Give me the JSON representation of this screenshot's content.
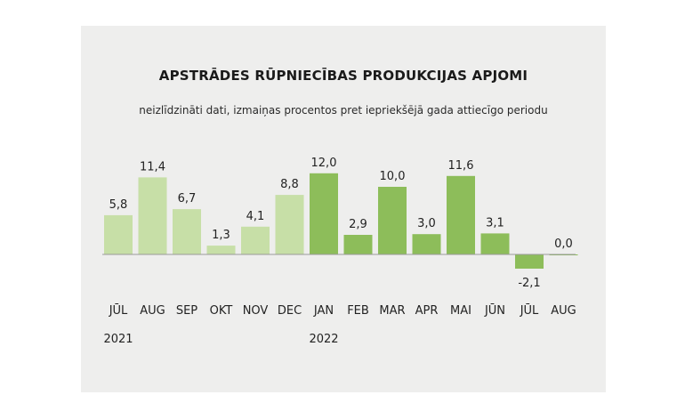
{
  "chart_data": {
    "type": "bar",
    "title": "APSTRĀDES RŪPNIECĪBAS PRODUKCIJAS APJOMI",
    "subtitle": "neizlīdzināti dati, izmaiņas procentos pret iepriekšējā gada attiecīgo periodu",
    "categories": [
      "JŪL",
      "AUG",
      "SEP",
      "OKT",
      "NOV",
      "DEC",
      "JAN",
      "FEB",
      "MAR",
      "APR",
      "MAI",
      "JŪN",
      "JŪL",
      "AUG"
    ],
    "category_years": [
      "2021",
      "",
      "",
      "",
      "",
      "",
      "2022",
      "",
      "",
      "",
      "",
      "",
      "",
      ""
    ],
    "values": [
      5.8,
      11.4,
      6.7,
      1.3,
      4.1,
      8.8,
      12.0,
      2.9,
      10.0,
      3.0,
      11.6,
      3.1,
      -2.1,
      0.0
    ],
    "value_labels": [
      "5,8",
      "11,4",
      "6,7",
      "1,3",
      "4,1",
      "8,8",
      "12,0",
      "2,9",
      "10,0",
      "3,0",
      "11,6",
      "3,1",
      "-2,1",
      "0,0"
    ],
    "ylim": [
      -3,
      13
    ],
    "grid": false,
    "colors": {
      "2021": "#c7dfa7",
      "2022": "#8dbd5a",
      "axis": "#9a9a9a"
    }
  }
}
